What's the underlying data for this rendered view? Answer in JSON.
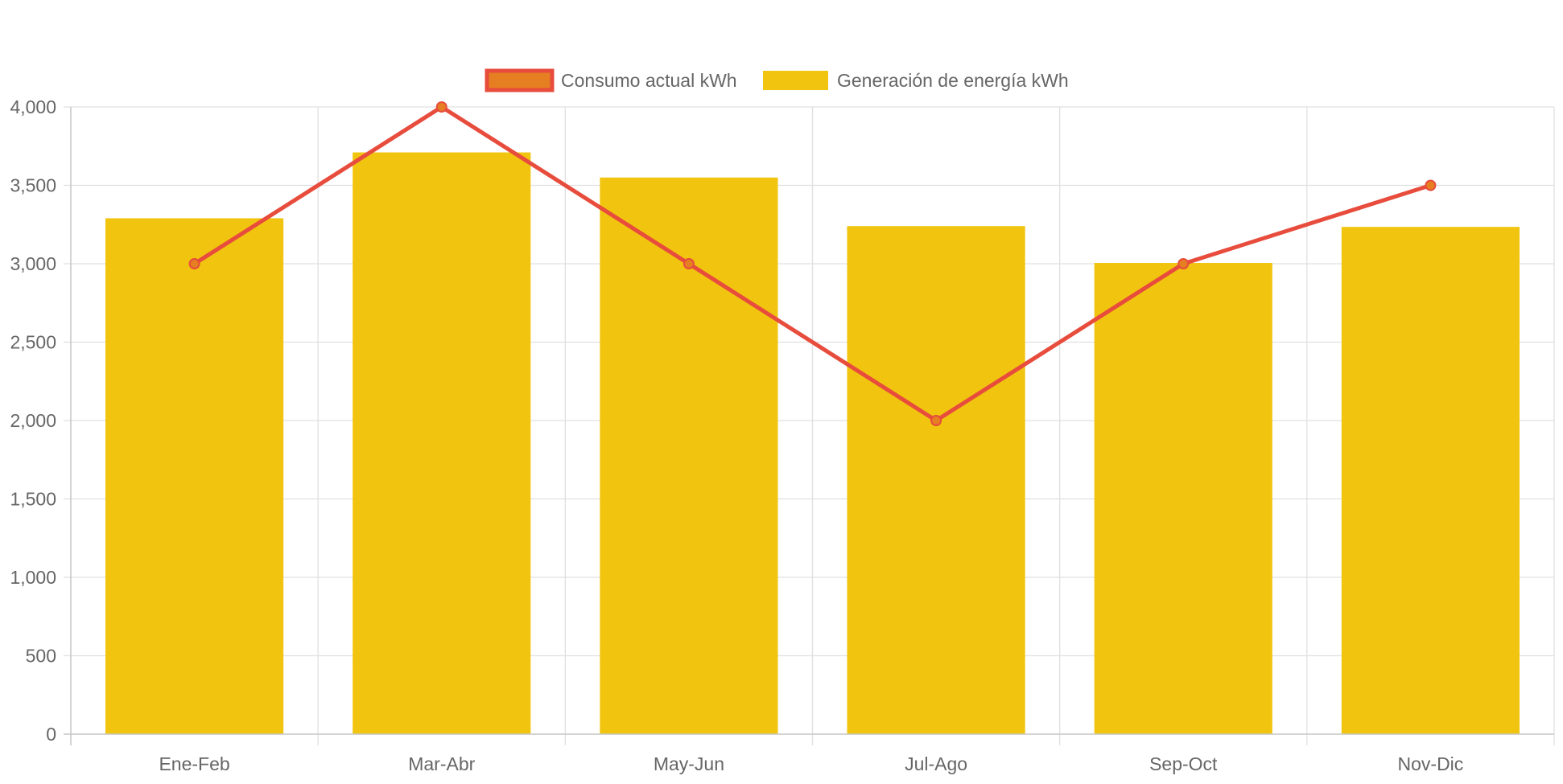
{
  "chart_data": {
    "type": "bar",
    "categories": [
      "Ene-Feb",
      "Mar-Abr",
      "May-Jun",
      "Jul-Ago",
      "Sep-Oct",
      "Nov-Dic"
    ],
    "series": [
      {
        "name": "Consumo actual kWh",
        "type": "line",
        "values": [
          3000,
          4000,
          3000,
          2000,
          3000,
          3500
        ],
        "color": "#e74c3c",
        "point_color": "#e67e22"
      },
      {
        "name": "Generación de energía kWh",
        "type": "bar",
        "values": [
          3290,
          3710,
          3550,
          3240,
          3005,
          3235
        ],
        "color": "#f1c40f"
      }
    ],
    "ylim": [
      0,
      4000
    ],
    "yticks": [
      0,
      500,
      1000,
      1500,
      2000,
      2500,
      3000,
      3500,
      4000
    ],
    "ytick_labels": [
      "0",
      "500",
      "1,000",
      "1,500",
      "2,000",
      "2,500",
      "3,000",
      "3,500",
      "4,000"
    ],
    "grid": true,
    "legend_position": "top-center",
    "gridline_color": "#e0e0e0",
    "text_color": "#666666"
  }
}
